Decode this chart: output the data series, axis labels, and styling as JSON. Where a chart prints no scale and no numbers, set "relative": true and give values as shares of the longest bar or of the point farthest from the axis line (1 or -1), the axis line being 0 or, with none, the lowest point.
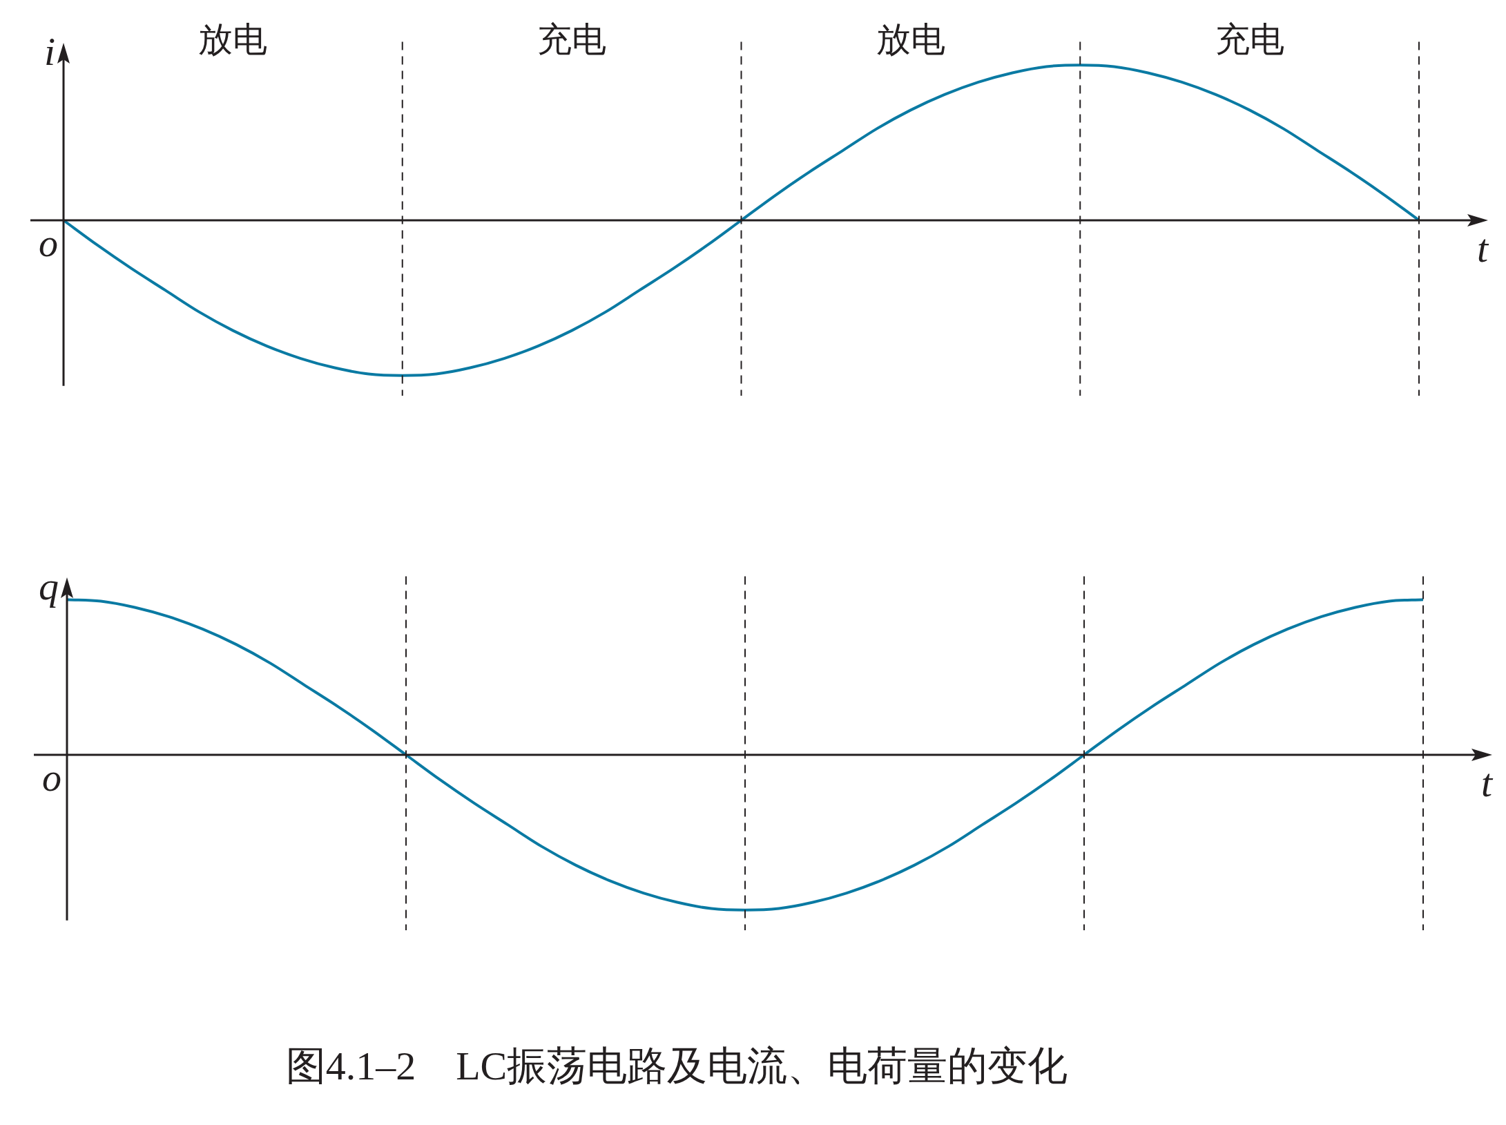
{
  "chart_data": [
    {
      "type": "line",
      "relative": true,
      "ylabel": "i",
      "xlabel": "t",
      "grid": "x",
      "legend": false,
      "marker": "none",
      "categories": [
        null,
        null,
        null,
        null,
        null,
        null,
        null,
        null,
        null,
        null,
        null,
        null,
        null,
        null,
        null,
        null,
        null,
        null,
        null,
        null,
        null,
        null,
        null,
        null,
        null,
        null,
        null,
        null,
        null,
        null,
        null,
        null,
        null,
        null,
        null,
        null,
        null,
        null,
        null,
        null,
        null
      ],
      "series": [
        {
          "color": "#0a7aa3",
          "line_style": "solid",
          "values": [
            0,
            -0.16,
            -0.31,
            -0.45,
            -0.59,
            -0.71,
            -0.81,
            -0.89,
            -0.95,
            -0.99,
            -1,
            -0.99,
            -0.95,
            -0.89,
            -0.81,
            -0.71,
            -0.59,
            -0.45,
            -0.31,
            -0.16,
            0,
            0.16,
            0.31,
            0.45,
            0.59,
            0.71,
            0.81,
            0.89,
            0.95,
            0.99,
            1,
            0.99,
            0.95,
            0.89,
            0.81,
            0.71,
            0.59,
            0.45,
            0.31,
            0.16,
            0
          ]
        }
      ],
      "annotations": [
        "o",
        "放电",
        "充电",
        "放电",
        "充电"
      ]
    },
    {
      "type": "line",
      "relative": true,
      "ylabel": "q",
      "xlabel": "t",
      "grid": "x",
      "legend": false,
      "marker": "none",
      "title": "图4.1–2　LC振荡电路及电流、电荷量的变化",
      "categories": [
        null,
        null,
        null,
        null,
        null,
        null,
        null,
        null,
        null,
        null,
        null,
        null,
        null,
        null,
        null,
        null,
        null,
        null,
        null,
        null,
        null,
        null,
        null,
        null,
        null,
        null,
        null,
        null,
        null,
        null,
        null,
        null,
        null,
        null,
        null,
        null,
        null,
        null,
        null,
        null,
        null
      ],
      "series": [
        {
          "color": "#0a7aa3",
          "line_style": "solid",
          "values": [
            1,
            0.99,
            0.95,
            0.89,
            0.81,
            0.71,
            0.59,
            0.45,
            0.31,
            0.16,
            0,
            -0.16,
            -0.31,
            -0.45,
            -0.59,
            -0.71,
            -0.81,
            -0.89,
            -0.95,
            -0.99,
            -1,
            -0.99,
            -0.95,
            -0.89,
            -0.81,
            -0.71,
            -0.59,
            -0.45,
            -0.31,
            -0.16,
            0,
            0.16,
            0.31,
            0.45,
            0.59,
            0.71,
            0.81,
            0.89,
            0.95,
            0.99,
            1
          ]
        }
      ],
      "annotations": [
        "o"
      ]
    }
  ]
}
